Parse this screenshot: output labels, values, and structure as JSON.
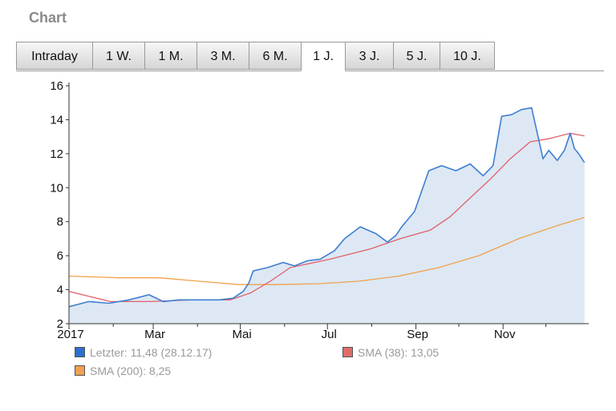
{
  "header": {
    "title": "Chart"
  },
  "tabs": [
    "Intraday",
    "1 W.",
    "1 M.",
    "3 M.",
    "6 M.",
    "1 J.",
    "3 J.",
    "5 J.",
    "10 J."
  ],
  "active_tab": "1 J.",
  "colors": {
    "price": "#3f7fd0",
    "price_fill": "#dde8f4",
    "sma38": "#e0606a",
    "sma200": "#f0a24a",
    "swatch_price": "#2f6fd0",
    "swatch_sma38": "#e06b6b",
    "swatch_sma200": "#f0a050"
  },
  "legend": [
    {
      "label": "Letzter: 11,48 (28.12.17)",
      "color": "#2f6fd0"
    },
    {
      "label": "SMA (38): 13,05",
      "color": "#e06b6b"
    },
    {
      "label": "SMA (200): 8,25",
      "color": "#f0a050"
    }
  ],
  "chart_data": {
    "type": "area",
    "x_tick_labels": [
      "2017",
      "Mar",
      "Mai",
      "Jul",
      "Sep",
      "Nov"
    ],
    "y_ticks": [
      2,
      4,
      6,
      8,
      10,
      12,
      14,
      16
    ],
    "ylim": [
      2,
      16
    ],
    "xlim": [
      "2017-01-01",
      "2017-12-31"
    ],
    "grid": false,
    "legend_position": "bottom",
    "series": [
      {
        "name": "Letzter",
        "x": [
          "2017-01-01",
          "2017-01-15",
          "2017-01-29",
          "2017-02-12",
          "2017-02-26",
          "2017-03-08",
          "2017-03-19",
          "2017-04-02",
          "2017-04-16",
          "2017-04-26",
          "2017-05-03",
          "2017-05-07",
          "2017-05-10",
          "2017-05-20",
          "2017-05-31",
          "2017-06-08",
          "2017-06-17",
          "2017-06-26",
          "2017-07-06",
          "2017-07-13",
          "2017-07-24",
          "2017-08-04",
          "2017-08-12",
          "2017-08-18",
          "2017-08-22",
          "2017-08-24",
          "2017-08-31",
          "2017-09-10",
          "2017-09-19",
          "2017-09-29",
          "2017-10-09",
          "2017-10-18",
          "2017-10-25",
          "2017-10-31",
          "2017-11-07",
          "2017-11-14",
          "2017-11-21",
          "2017-11-25",
          "2017-11-29",
          "2017-12-03",
          "2017-12-09",
          "2017-12-14",
          "2017-12-18",
          "2017-12-21",
          "2017-12-24",
          "2017-12-28"
        ],
        "values": [
          3.0,
          3.3,
          3.2,
          3.4,
          3.7,
          3.3,
          3.4,
          3.4,
          3.4,
          3.5,
          3.9,
          4.4,
          5.1,
          5.3,
          5.6,
          5.4,
          5.7,
          5.8,
          6.3,
          7.0,
          7.7,
          7.3,
          6.8,
          7.2,
          7.7,
          7.9,
          8.6,
          11.0,
          11.3,
          11.0,
          11.4,
          10.7,
          11.3,
          14.2,
          14.3,
          14.6,
          14.7,
          13.2,
          11.7,
          12.2,
          11.6,
          12.2,
          13.2,
          12.3,
          12.0,
          11.48
        ]
      },
      {
        "name": "SMA (38)",
        "x": [
          "2017-01-01",
          "2017-01-30",
          "2017-02-27",
          "2017-03-27",
          "2017-04-24",
          "2017-05-08",
          "2017-05-22",
          "2017-06-05",
          "2017-07-03",
          "2017-07-31",
          "2017-08-21",
          "2017-09-11",
          "2017-09-25",
          "2017-10-09",
          "2017-10-23",
          "2017-11-06",
          "2017-11-20",
          "2017-12-04",
          "2017-12-18",
          "2017-12-28"
        ],
        "values": [
          3.9,
          3.3,
          3.3,
          3.4,
          3.4,
          3.8,
          4.5,
          5.3,
          5.8,
          6.4,
          7.0,
          7.5,
          8.3,
          9.4,
          10.5,
          11.7,
          12.7,
          12.9,
          13.2,
          13.05
        ]
      },
      {
        "name": "SMA (200)",
        "x": [
          "2017-01-01",
          "2017-02-05",
          "2017-03-05",
          "2017-04-02",
          "2017-04-30",
          "2017-05-28",
          "2017-06-25",
          "2017-07-23",
          "2017-08-20",
          "2017-09-17",
          "2017-10-15",
          "2017-11-12",
          "2017-12-10",
          "2017-12-28"
        ],
        "values": [
          4.8,
          4.7,
          4.7,
          4.5,
          4.3,
          4.3,
          4.35,
          4.5,
          4.8,
          5.3,
          6.0,
          7.0,
          7.8,
          8.25
        ]
      }
    ]
  }
}
